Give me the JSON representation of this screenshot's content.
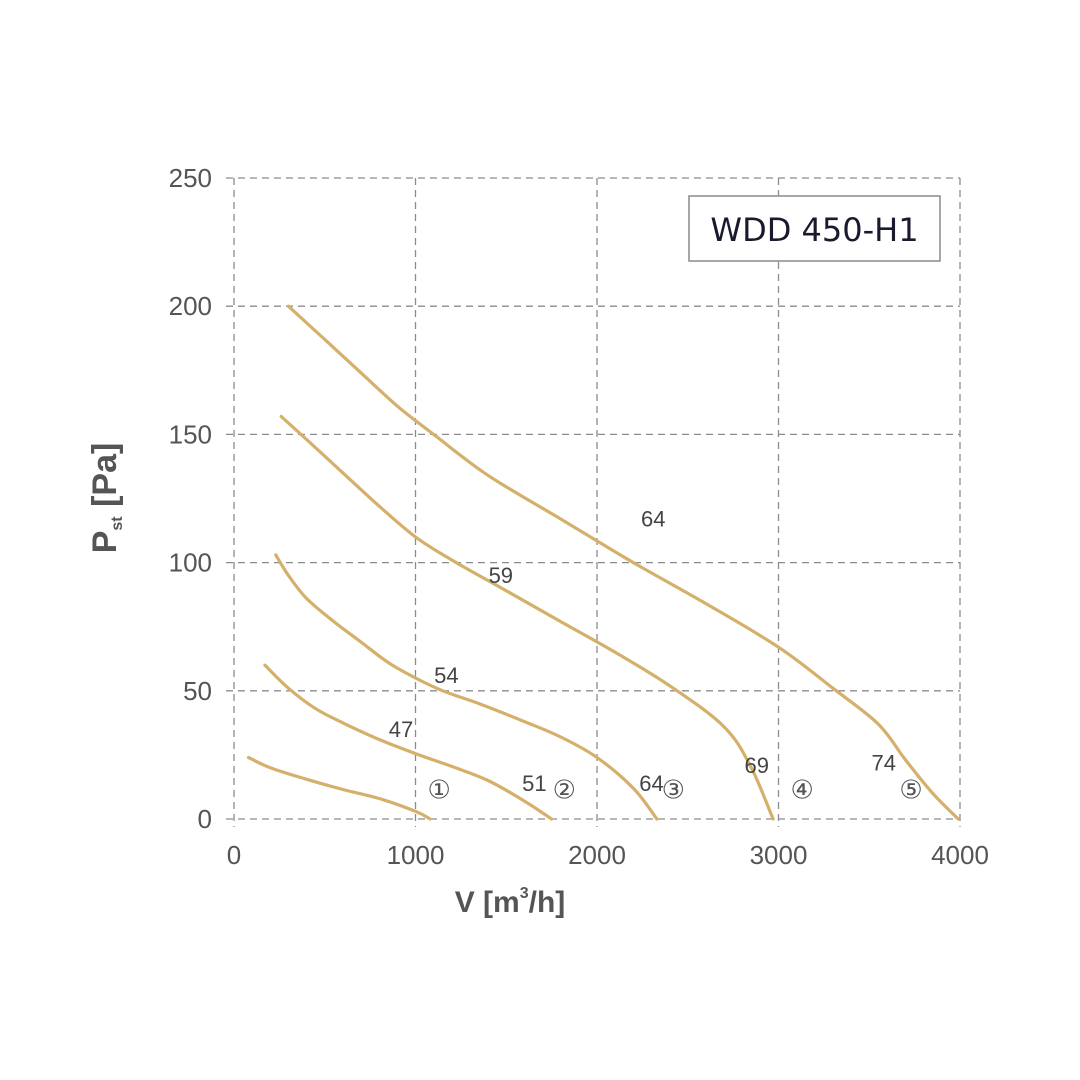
{
  "chart_data": {
    "type": "line",
    "title": "",
    "model_label": "WDD 450-H1",
    "xlabel": "V [m³/h]",
    "xlabel_parts": {
      "main": "V [m",
      "sup": "3",
      "tail": "/h]"
    },
    "ylabel_parts": {
      "main": "P",
      "sub": "st",
      "tail": " [Pa]"
    },
    "xlim": [
      0,
      4000
    ],
    "ylim": [
      0,
      250
    ],
    "xticks": [
      0,
      1000,
      2000,
      3000,
      4000
    ],
    "yticks": [
      0,
      50,
      100,
      150,
      200,
      250
    ],
    "grid": true,
    "line_color": "#d4b06a",
    "series": [
      {
        "curve_number": "①",
        "points": [
          [
            80,
            24
          ],
          [
            200,
            20
          ],
          [
            400,
            15.5
          ],
          [
            600,
            11.5
          ],
          [
            800,
            8
          ],
          [
            1000,
            3
          ],
          [
            1080,
            0
          ]
        ],
        "labels": []
      },
      {
        "curve_number": "②",
        "points": [
          [
            170,
            60
          ],
          [
            300,
            51
          ],
          [
            450,
            43
          ],
          [
            600,
            37.5
          ],
          [
            800,
            31
          ],
          [
            1000,
            25.5
          ],
          [
            1200,
            20.5
          ],
          [
            1400,
            15
          ],
          [
            1600,
            7
          ],
          [
            1750,
            0
          ]
        ],
        "labels": [
          "47",
          "51"
        ]
      },
      {
        "curve_number": "③",
        "points": [
          [
            230,
            103
          ],
          [
            300,
            95
          ],
          [
            400,
            86
          ],
          [
            550,
            77
          ],
          [
            700,
            69
          ],
          [
            850,
            61
          ],
          [
            1000,
            55
          ],
          [
            1150,
            50
          ],
          [
            1350,
            45
          ],
          [
            1600,
            38
          ],
          [
            1800,
            32
          ],
          [
            2000,
            24
          ],
          [
            2200,
            12
          ],
          [
            2330,
            0
          ]
        ],
        "labels": [
          "54",
          "64"
        ]
      },
      {
        "curve_number": "④",
        "points": [
          [
            260,
            157
          ],
          [
            400,
            148
          ],
          [
            600,
            135
          ],
          [
            800,
            122
          ],
          [
            1000,
            110
          ],
          [
            1200,
            101
          ],
          [
            1500,
            89
          ],
          [
            1800,
            77
          ],
          [
            2100,
            65
          ],
          [
            2400,
            52
          ],
          [
            2700,
            36
          ],
          [
            2850,
            20
          ],
          [
            2970,
            0
          ]
        ],
        "labels": [
          "59",
          "69"
        ]
      },
      {
        "curve_number": "⑤",
        "points": [
          [
            300,
            200
          ],
          [
            500,
            187
          ],
          [
            700,
            174
          ],
          [
            900,
            161
          ],
          [
            1100,
            150
          ],
          [
            1400,
            134
          ],
          [
            1800,
            117
          ],
          [
            2200,
            100
          ],
          [
            2600,
            84
          ],
          [
            3000,
            67
          ],
          [
            3300,
            51
          ],
          [
            3550,
            37
          ],
          [
            3700,
            23
          ],
          [
            3850,
            10
          ],
          [
            3990,
            0
          ]
        ],
        "labels": [
          "64",
          "74"
        ]
      }
    ],
    "annotations": [
      {
        "text": "47",
        "x": 920,
        "y": 32
      },
      {
        "text": "51",
        "x": 1655,
        "y": 11
      },
      {
        "text": "54",
        "x": 1170,
        "y": 53
      },
      {
        "text": "64",
        "x": 2300,
        "y": 11
      },
      {
        "text": "59",
        "x": 1470,
        "y": 92
      },
      {
        "text": "69",
        "x": 2880,
        "y": 18
      },
      {
        "text": "64",
        "x": 2310,
        "y": 114
      },
      {
        "text": "74",
        "x": 3580,
        "y": 19
      }
    ],
    "curve_number_positions": [
      {
        "text": "①",
        "x": 1130,
        "y": 8
      },
      {
        "text": "②",
        "x": 1820,
        "y": 8
      },
      {
        "text": "③",
        "x": 2420,
        "y": 8
      },
      {
        "text": "④",
        "x": 3130,
        "y": 8
      },
      {
        "text": "⑤",
        "x": 3730,
        "y": 8
      }
    ]
  }
}
